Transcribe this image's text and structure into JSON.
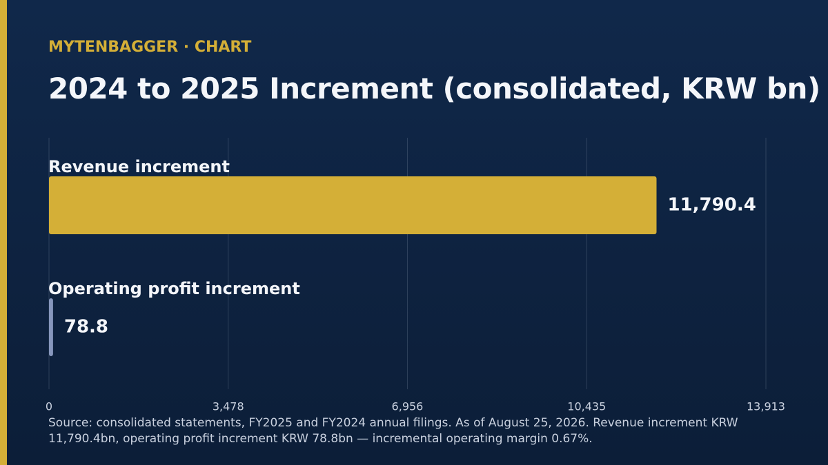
{
  "chart_data": {
    "type": "hbar",
    "kicker": "MYTENBAGGER · CHART",
    "title": "2024 to 2025 Increment (consolidated, KRW bn)",
    "categories": [
      "Revenue increment",
      "Operating profit increment"
    ],
    "values": [
      11790.4,
      78.8
    ],
    "value_labels": [
      "11,790.4",
      "78.8"
    ],
    "colors": [
      "#d4af37",
      "#8797bd"
    ],
    "xlim": [
      0,
      13913
    ],
    "xticks": [
      0,
      {
        "value": 3478,
        "label": "3,478"
      },
      {
        "value": 6956,
        "label": "6,956"
      },
      {
        "value": 10435,
        "label": "10,435"
      },
      {
        "value": 13913,
        "label": "13,913"
      }
    ],
    "grid": true,
    "note": "Source: consolidated statements, FY2025 and FY2024 annual filings. As of August 25, 2026. Revenue increment KRW 11,790.4bn, operating profit increment KRW 78.8bn — incremental operating margin 0.67%."
  }
}
